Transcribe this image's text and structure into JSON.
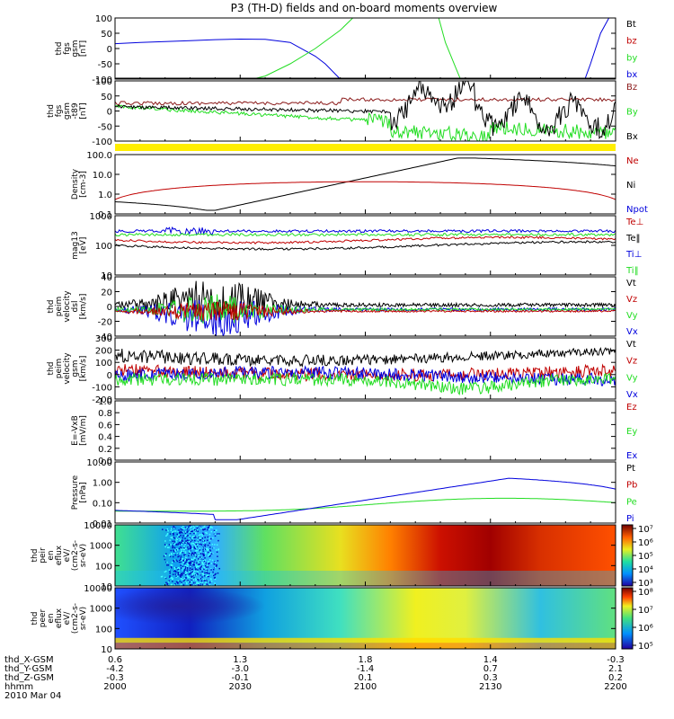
{
  "title": "P3 (TH-D) fields and on-board moments overview",
  "colors": {
    "black": "#000000",
    "red": "#c00000",
    "green": "#22dd22",
    "blue": "#0000dd",
    "yellow": "#ffee00",
    "brown": "#8b1a1a"
  },
  "chart_data": [
    {
      "id": "fgs",
      "type": "line",
      "ylabel": [
        "thd",
        "fgs",
        "gsm",
        "[nT]"
      ],
      "yticks": [
        "100",
        "50",
        "0",
        "-50",
        "-100"
      ],
      "ylim": [
        -100,
        100
      ],
      "legend": [
        {
          "label": "Bt",
          "color": "#000000"
        },
        {
          "label": "bz",
          "color": "#c00000"
        },
        {
          "label": "by",
          "color": "#22dd22"
        },
        {
          "label": "bx",
          "color": "#0000dd"
        }
      ],
      "series": [
        {
          "name": "bx",
          "color": "#0000dd",
          "x": [
            0,
            0.05,
            0.1,
            0.15,
            0.2,
            0.25,
            0.3,
            0.35,
            0.4,
            0.42,
            0.45,
            0.48
          ],
          "y": [
            16,
            20,
            23,
            26,
            29,
            31,
            30,
            20,
            -25,
            -50,
            -100,
            -140
          ],
          "x2": [
            0.93,
            0.95,
            0.97,
            1.0
          ],
          "y2": [
            -140,
            -50,
            50,
            140
          ]
        },
        {
          "name": "by",
          "color": "#22dd22",
          "x": [
            0.2,
            0.25,
            0.3,
            0.35,
            0.4,
            0.45,
            0.5
          ],
          "y": [
            -140,
            -110,
            -90,
            -50,
            0,
            60,
            140
          ],
          "x2": [
            0.64,
            0.66,
            0.7
          ],
          "y2": [
            140,
            20,
            -140
          ]
        },
        {
          "name": "bz",
          "color": "#c00000",
          "x": [
            0,
            0.05
          ],
          "y": [
            -98,
            -100
          ]
        }
      ]
    },
    {
      "id": "fgs2",
      "type": "line",
      "ylabel": [
        "thd",
        "fgs",
        "gsm",
        "-t89",
        "[nT]"
      ],
      "yticks": [
        "100",
        "50",
        "0",
        "-50",
        "-100"
      ],
      "ylim": [
        -130,
        130
      ],
      "legend": [
        {
          "label": "Bz",
          "color": "#8b1a1a"
        },
        {
          "label": "By",
          "color": "#22dd22"
        },
        {
          "label": "Bx",
          "color": "#000000"
        }
      ]
    },
    {
      "id": "density",
      "type": "line",
      "ylabel": [
        "Density",
        "[cm-3]"
      ],
      "yticks": [
        "100.0",
        "10.0",
        "1.0",
        "0.1"
      ],
      "legend": [
        {
          "label": "Ne",
          "color": "#c00000"
        },
        {
          "label": "Ni",
          "color": "#000000"
        },
        {
          "label": "Npot",
          "color": "#0000dd"
        }
      ]
    },
    {
      "id": "temp",
      "type": "line",
      "ylabel": [
        "mag13",
        "[eV]"
      ],
      "yticks": [
        "1000",
        "100",
        "10"
      ],
      "legend": [
        {
          "label": "Te⊥",
          "color": "#c00000"
        },
        {
          "label": "Te‖",
          "color": "#000000"
        },
        {
          "label": "Ti⊥",
          "color": "#0000dd"
        },
        {
          "label": "Ti‖",
          "color": "#22dd22"
        }
      ]
    },
    {
      "id": "vel_dsl",
      "type": "line",
      "ylabel": [
        "thd",
        "peim",
        "velocity",
        "dsl",
        "[km/s]"
      ],
      "yticks": [
        "40",
        "20",
        "0",
        "-20",
        "-40"
      ],
      "legend": [
        {
          "label": "Vt",
          "color": "#000000"
        },
        {
          "label": "Vz",
          "color": "#c00000"
        },
        {
          "label": "Vy",
          "color": "#22dd22"
        },
        {
          "label": "Vx",
          "color": "#0000dd"
        }
      ]
    },
    {
      "id": "vel_gsm",
      "type": "line",
      "ylabel": [
        "thd",
        "peim",
        "velocity",
        "gsm",
        "[km/s]"
      ],
      "yticks": [
        "300",
        "200",
        "100",
        "0",
        "-100",
        "-200"
      ],
      "legend": [
        {
          "label": "Vt",
          "color": "#000000"
        },
        {
          "label": "Vz",
          "color": "#c00000"
        },
        {
          "label": "Vy",
          "color": "#22dd22"
        },
        {
          "label": "Vx",
          "color": "#0000dd"
        }
      ]
    },
    {
      "id": "efield",
      "type": "line",
      "ylabel": [
        "E=-VxB",
        "[mV/m]"
      ],
      "yticks": [
        "1.0",
        "0.8",
        "0.6",
        "0.4",
        "0.2",
        "0.0"
      ],
      "legend": [
        {
          "label": "Ez",
          "color": "#c00000"
        },
        {
          "label": "Ey",
          "color": "#22dd22"
        },
        {
          "label": "Ex",
          "color": "#0000dd"
        }
      ]
    },
    {
      "id": "pressure",
      "type": "line",
      "ylabel": [
        "Pressure",
        "[nPa]"
      ],
      "yticks": [
        "10.00",
        "1.00",
        "0.10",
        "0.01"
      ],
      "legend": [
        {
          "label": "Pt",
          "color": "#000000"
        },
        {
          "label": "Pb",
          "color": "#c00000"
        },
        {
          "label": "Pe",
          "color": "#22dd22"
        },
        {
          "label": "Pi",
          "color": "#0000dd"
        }
      ]
    },
    {
      "id": "peir",
      "type": "heatmap",
      "ylabel": [
        "thd",
        "peir",
        "en",
        "eflux",
        "eV/",
        "(cm2-s-",
        "sr-eV)"
      ],
      "yticks": [
        "10000",
        "1000",
        "100",
        "10"
      ],
      "cbar": [
        "10⁷",
        "10⁶",
        "10⁵",
        "10⁴",
        "10³"
      ]
    },
    {
      "id": "peer",
      "type": "heatmap",
      "ylabel": [
        "thd",
        "peer",
        "en",
        "eflux",
        "eV/",
        "(cm2-s-",
        "sr-eV)"
      ],
      "yticks": [
        "10000",
        "1000",
        "100",
        "10"
      ],
      "cbar": [
        "10⁸",
        "10⁷",
        "10⁶",
        "10⁵"
      ]
    }
  ],
  "xaxis": {
    "rows": [
      {
        "label": "thd_X-GSM",
        "values": [
          "0.6",
          "1.3",
          "1.8",
          "1.4",
          "-0.3"
        ]
      },
      {
        "label": "thd_Y-GSM",
        "values": [
          "-4.2",
          "-3.0",
          "-1.4",
          "0.7",
          "2.1"
        ]
      },
      {
        "label": "thd_Z-GSM",
        "values": [
          "-0.3",
          "-0.1",
          "0.1",
          "0.3",
          "0.2"
        ]
      },
      {
        "label": "hhmm",
        "values": [
          "2000",
          "2030",
          "2100",
          "2130",
          "2200"
        ]
      }
    ],
    "date": "2010 Mar 04"
  }
}
